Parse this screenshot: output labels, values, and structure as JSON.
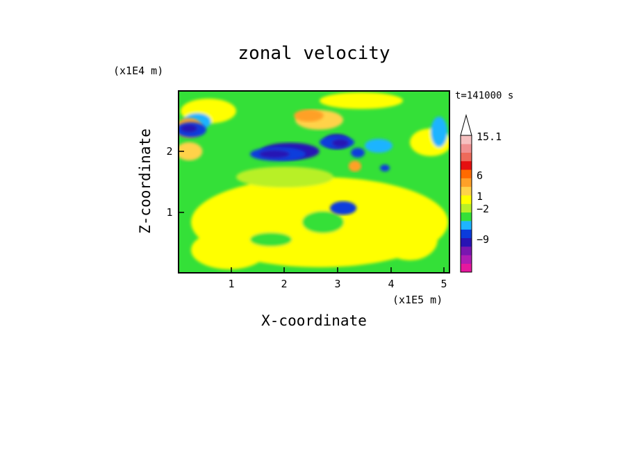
{
  "chart_data": {
    "type": "heatmap",
    "title": "zonal velocity",
    "xlabel": "X-coordinate",
    "ylabel": "Z-coordinate",
    "x_scale_label": "(x1E5 m)",
    "y_scale_label": "(x1E4 m)",
    "time_label": "t=141000 s",
    "xlim": [
      0,
      5.1
    ],
    "ylim": [
      0,
      2.95
    ],
    "x_ticks": [
      "1",
      "2",
      "3",
      "4",
      "5"
    ],
    "y_ticks": [
      "1",
      "2"
    ],
    "colorbar": {
      "labels": [
        {
          "text": "15.1",
          "level": 15.1
        },
        {
          "text": "6",
          "level": 6
        },
        {
          "text": "1",
          "level": 1
        },
        {
          "text": "−2",
          "level": -2
        },
        {
          "text": "−9",
          "level": -9
        }
      ],
      "colors": [
        "#e6189e",
        "#b01cb4",
        "#7a16b0",
        "#2814b4",
        "#0a3cdc",
        "#1fb4ff",
        "#34e038",
        "#b8f028",
        "#ffff00",
        "#ffd24a",
        "#ffa028",
        "#ff6a00",
        "#e51010",
        "#ee6a5a",
        "#f09090",
        "#f6c0c0"
      ],
      "overflow_color": "#ffffff"
    },
    "blobs": [
      {
        "level": 10,
        "x": 0.2,
        "y": 2.35,
        "rx": 0.25,
        "rz": 0.16
      },
      {
        "level": 9,
        "x": 0.2,
        "y": 1.97,
        "rx": 0.25,
        "rz": 0.15
      },
      {
        "level": 9,
        "x": 2.65,
        "y": 2.48,
        "rx": 0.45,
        "rz": 0.16
      },
      {
        "level": 3,
        "x": 2.1,
        "y": 1.97,
        "rx": 0.55,
        "rz": 0.14
      },
      {
        "level": 3,
        "x": 2.98,
        "y": 2.13,
        "rx": 0.25,
        "rz": 0.12
      },
      {
        "level": 4,
        "x": 3.1,
        "y": 1.05,
        "rx": 0.25,
        "rz": 0.11
      },
      {
        "level": 10,
        "x": 2.45,
        "y": 2.55,
        "rx": 0.28,
        "rz": 0.1
      },
      {
        "level": 10,
        "x": 3.32,
        "y": 1.73,
        "rx": 0.12,
        "rz": 0.09
      }
    ]
  }
}
